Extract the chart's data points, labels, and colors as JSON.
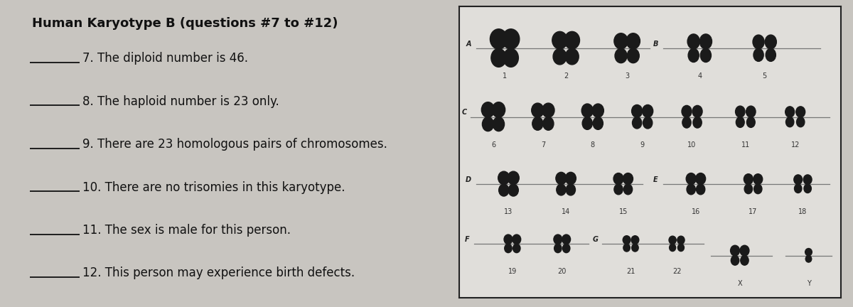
{
  "bg_color": "#c8c5c0",
  "title": "Human Karyotype B (questions #7 to #12)",
  "questions": [
    {
      "num": "7",
      "text": ". The diploid number is 46."
    },
    {
      "num": "8",
      "text": ". The haploid number is 23 only."
    },
    {
      "num": "9",
      "text": ". There are 23 homologous pairs of chromosomes."
    },
    {
      "num": "10",
      "text": ". There are no trisomies in this karyotype."
    },
    {
      "num": "11",
      "text": ". The sex is male for this person."
    },
    {
      "num": "12",
      "text": ". This person may experience birth defects."
    }
  ],
  "text_color": "#111111",
  "line_color": "#111111",
  "box_bg": "#e0deda",
  "box_border": "#222222",
  "chrom_color": "#1a1a1a",
  "line_gray": "#777777",
  "num_color": "#333333",
  "label_color": "#222222"
}
